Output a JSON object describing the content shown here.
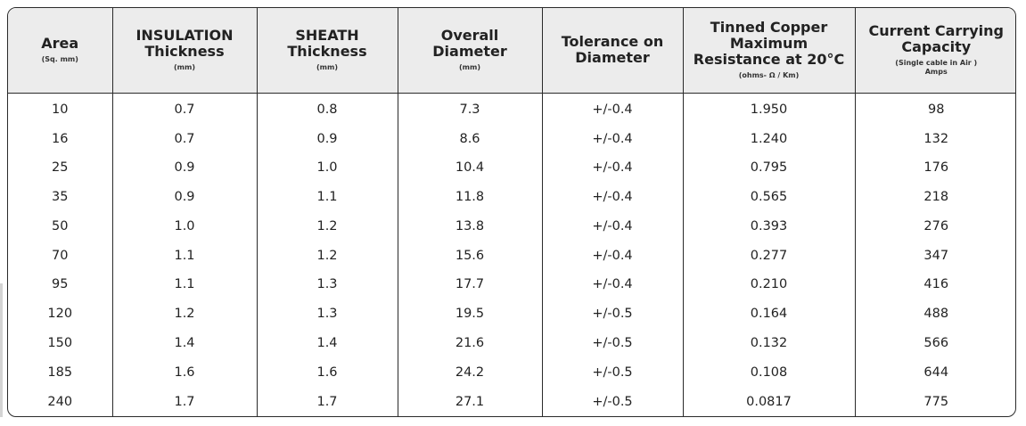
{
  "columns": [
    {
      "title_lines": [
        "Area"
      ],
      "unit": "(Sq. mm)",
      "unit2": ""
    },
    {
      "title_lines": [
        "INSULATION",
        "Thickness"
      ],
      "unit": "(mm)",
      "unit2": ""
    },
    {
      "title_lines": [
        "SHEATH",
        "Thickness"
      ],
      "unit": "(mm)",
      "unit2": ""
    },
    {
      "title_lines": [
        "Overall",
        "Diameter"
      ],
      "unit": "(mm)",
      "unit2": ""
    },
    {
      "title_lines": [
        "Tolerance on",
        "Diameter"
      ],
      "unit": "",
      "unit2": ""
    },
    {
      "title_lines": [
        "Tinned Copper",
        "Maximum",
        "Resistance at 20°C"
      ],
      "unit": "(ohms- Ω / Km)",
      "unit2": ""
    },
    {
      "title_lines": [
        "Current Carrying",
        "Capacity"
      ],
      "unit": "(Single cable in Air )",
      "unit2": "Amps"
    }
  ],
  "rows": [
    [
      "10",
      "0.7",
      "0.8",
      "7.3",
      "+/-0.4",
      "1.950",
      "98"
    ],
    [
      "16",
      "0.7",
      "0.9",
      "8.6",
      "+/-0.4",
      "1.240",
      "132"
    ],
    [
      "25",
      "0.9",
      "1.0",
      "10.4",
      "+/-0.4",
      "0.795",
      "176"
    ],
    [
      "35",
      "0.9",
      "1.1",
      "11.8",
      "+/-0.4",
      "0.565",
      "218"
    ],
    [
      "50",
      "1.0",
      "1.2",
      "13.8",
      "+/-0.4",
      "0.393",
      "276"
    ],
    [
      "70",
      "1.1",
      "1.2",
      "15.6",
      "+/-0.4",
      "0.277",
      "347"
    ],
    [
      "95",
      "1.1",
      "1.3",
      "17.7",
      "+/-0.4",
      "0.210",
      "416"
    ],
    [
      "120",
      "1.2",
      "1.3",
      "19.5",
      "+/-0.5",
      "0.164",
      "488"
    ],
    [
      "150",
      "1.4",
      "1.4",
      "21.6",
      "+/-0.5",
      "0.132",
      "566"
    ],
    [
      "185",
      "1.6",
      "1.6",
      "24.2",
      "+/-0.5",
      "0.108",
      "644"
    ],
    [
      "240",
      "1.7",
      "1.7",
      "27.1",
      "+/-0.5",
      "0.0817",
      "775"
    ]
  ],
  "colors": {
    "header_bg": "#ececec",
    "border": "#2a2a2a",
    "text": "#222222"
  }
}
